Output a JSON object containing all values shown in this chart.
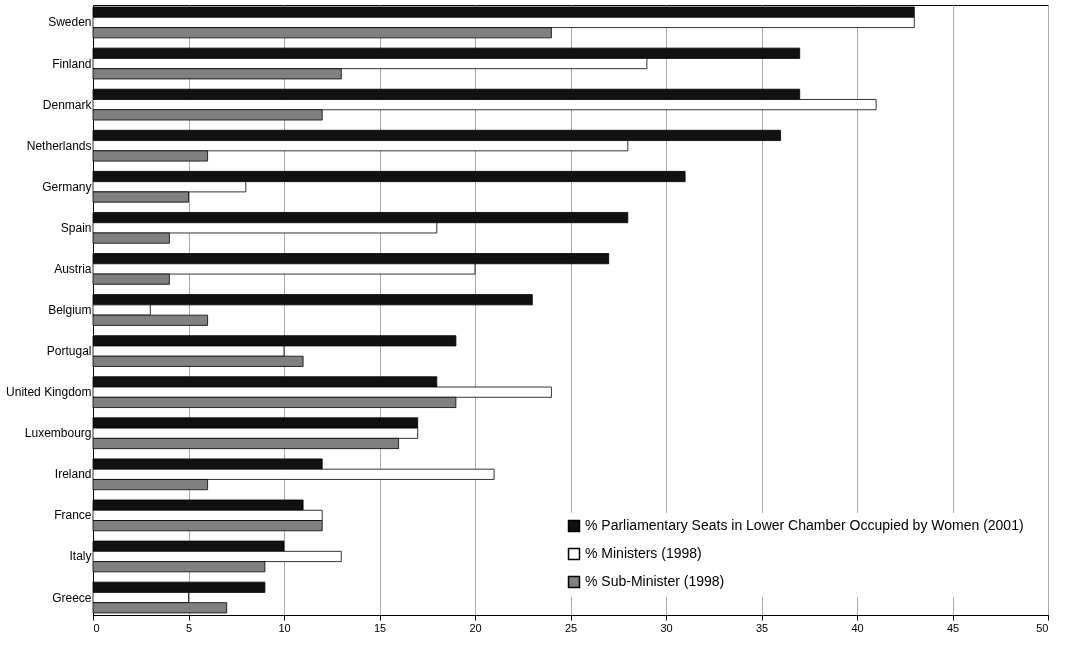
{
  "chart_data": {
    "type": "bar",
    "orientation": "horizontal",
    "categories": [
      "Sweden",
      "Finland",
      "Denmark",
      "Netherlands",
      "Germany",
      "Spain",
      "Austria",
      "Belgium",
      "Portugal",
      "United Kingdom",
      "Luxembourg",
      "Ireland",
      "France",
      "Italy",
      "Greece"
    ],
    "series": [
      {
        "name": "% Parliamentary Seats in Lower Chamber Occupied by Women (2001)",
        "color": "#111111",
        "values": [
          43,
          37,
          37,
          36,
          31,
          28,
          27,
          23,
          19,
          18,
          17,
          12,
          11,
          10,
          9
        ]
      },
      {
        "name": "% Ministers (1998)",
        "color": "#ffffff",
        "values": [
          43,
          29,
          41,
          28,
          8,
          18,
          20,
          3,
          10,
          24,
          17,
          21,
          12,
          13,
          5
        ]
      },
      {
        "name": "% Sub-Minister (1998)",
        "color": "#808080",
        "values": [
          24,
          13,
          12,
          6,
          5,
          4,
          4,
          6,
          11,
          19,
          16,
          6,
          12,
          9,
          7
        ]
      }
    ],
    "xlim": [
      0,
      50
    ],
    "xticks": [
      0,
      5,
      10,
      15,
      20,
      25,
      30,
      35,
      40,
      45,
      50
    ],
    "grid": "x",
    "legend": "bottom right"
  }
}
